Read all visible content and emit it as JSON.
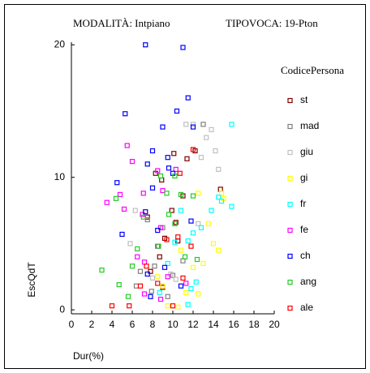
{
  "chart_data": {
    "type": "scatter",
    "annotations": [
      "MODALITÀ: Intpiano",
      "TIPOVOCA: 19-Pton"
    ],
    "xlabel": "Dur(%)",
    "ylabel": "EscQdT",
    "legend_title": "CodicePersona",
    "xlim": [
      0,
      20
    ],
    "xticks": [
      0,
      2,
      4,
      6,
      8,
      10,
      12,
      14,
      16,
      18,
      20
    ],
    "ylim": [
      -0.3,
      20.2
    ],
    "yticks": [
      0,
      10,
      20
    ],
    "series": [
      {
        "name": "st",
        "color": "#800000",
        "x": [
          12.2,
          11.4,
          10.1,
          8.3,
          8.9,
          11.0,
          14.7,
          9.9,
          10.3,
          7.5,
          9.2,
          8.7,
          10.5,
          7.8,
          9.0
        ],
        "values": [
          12.0,
          11.4,
          11.8,
          10.3,
          9.8,
          8.6,
          9.1,
          7.5,
          6.6,
          7.0,
          5.4,
          4.0,
          5.2,
          2.9,
          1.7
        ]
      },
      {
        "name": "mad",
        "color": "#808080",
        "x": [
          13.0,
          7.5,
          9.0,
          6.8,
          6.4,
          7.9,
          9.5,
          10.0,
          8.2,
          11.0
        ],
        "values": [
          14.0,
          6.8,
          6.2,
          2.9,
          1.8,
          1.4,
          1.0,
          2.6,
          3.3,
          3.7
        ]
      },
      {
        "name": "giu",
        "color": "#c0c0c0",
        "x": [
          11.3,
          12.0,
          13.3,
          13.8,
          14.2,
          12.8,
          14.5,
          6.3,
          5.8,
          8.0,
          9.8,
          10.3,
          12.5
        ],
        "values": [
          14.0,
          14.0,
          13.0,
          13.6,
          12.0,
          11.5,
          10.6,
          7.5,
          5.0,
          2.4,
          2.7,
          2.3,
          6.5
        ]
      },
      {
        "name": "gi",
        "color": "#ffff00",
        "x": [
          14.8,
          15.0,
          12.5,
          13.5,
          14.0,
          14.5,
          13.0,
          12.0,
          10.8,
          9.5,
          10.5,
          9.0,
          12.5,
          11.3,
          8.5
        ],
        "values": [
          8.8,
          8.4,
          8.8,
          6.5,
          5.0,
          4.5,
          3.5,
          3.2,
          4.5,
          0.3,
          0.2,
          1.8,
          1.2,
          1.3,
          2.5
        ]
      },
      {
        "name": "fr",
        "color": "#00ffff",
        "x": [
          15.8,
          14.8,
          15.8,
          14.5,
          13.8,
          12.8,
          12.0,
          10.8,
          11.5,
          12.3,
          11.8,
          9.5,
          11.5,
          8.7,
          10.2
        ],
        "values": [
          14.0,
          8.2,
          7.8,
          8.5,
          7.5,
          6.2,
          5.8,
          7.5,
          5.2,
          2.1,
          1.6,
          3.5,
          0.4,
          1.3,
          5.1
        ]
      },
      {
        "name": "fe",
        "color": "#ff00ff",
        "x": [
          5.5,
          6.0,
          3.5,
          4.8,
          5.2,
          7.1,
          8.5,
          10.3,
          9.0,
          7.0,
          8.8,
          8.5,
          6.5,
          7.2,
          9.5,
          11.3,
          8.8,
          7.2
        ],
        "values": [
          12.4,
          11.2,
          8.1,
          8.7,
          7.6,
          8.8,
          10.5,
          10.6,
          9.0,
          7.2,
          6.2,
          4.8,
          4.0,
          3.6,
          2.5,
          2.0,
          0.8,
          1.2
        ]
      },
      {
        "name": "ch",
        "color": "#0000ff",
        "x": [
          7.3,
          11.0,
          5.3,
          11.5,
          10.4,
          9.0,
          12.0,
          8.0,
          9.5,
          7.5,
          9.6,
          10.0,
          4.5,
          8.0,
          11.8,
          7.3,
          5.0,
          8.5,
          7.8,
          7.5,
          9.2,
          10.8
        ],
        "values": [
          20.0,
          19.8,
          14.8,
          16.0,
          15.0,
          13.8,
          13.8,
          12.0,
          11.5,
          11.0,
          10.7,
          10.3,
          9.6,
          9.2,
          6.7,
          7.4,
          5.7,
          6.0,
          1.0,
          2.7,
          3.2,
          1.8
        ]
      },
      {
        "name": "ang",
        "color": "#22cc22",
        "x": [
          4.4,
          8.8,
          10.2,
          10.8,
          9.4,
          12.0,
          7.1,
          9.6,
          10.2,
          6.5,
          6.0,
          3.0,
          4.7,
          5.6,
          8.6,
          11.2,
          12.4
        ],
        "values": [
          8.4,
          10.1,
          10.1,
          8.7,
          8.8,
          8.6,
          7.0,
          7.2,
          6.5,
          4.6,
          3.3,
          3.0,
          1.9,
          1.0,
          4.8,
          4.0,
          3.8
        ]
      },
      {
        "name": "ale",
        "color": "#ff0000",
        "x": [
          4.0,
          5.7,
          10.0,
          12.0,
          10.7,
          10.5,
          11.8,
          9.4,
          7.4,
          6.8,
          8.5,
          11.0
        ],
        "values": [
          0.3,
          0.3,
          0.3,
          12.1,
          10.3,
          5.5,
          4.8,
          5.3,
          3.3,
          1.8,
          2.0,
          2.4
        ]
      }
    ]
  }
}
